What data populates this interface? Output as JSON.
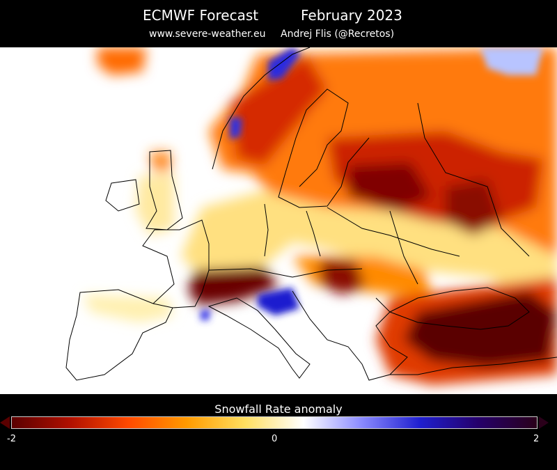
{
  "header": {
    "title": "ECMWF Forecast",
    "period": "February 2023",
    "website": "www.severe-weather.eu",
    "author": "Andrej Flis (@Recretos)"
  },
  "legend": {
    "title": "Snowfall Rate anomaly",
    "tick_min": "-2",
    "tick_mid": "0",
    "tick_max": "2",
    "colors": [
      "#5a0000",
      "#b01000",
      "#ff4a00",
      "#ff9a00",
      "#ffdf60",
      "#ffffff",
      "#8a8aff",
      "#1f1fcf",
      "#25006a",
      "#2a001a"
    ]
  },
  "map": {
    "region": "Europe",
    "variable": "snowfall rate anomaly"
  }
}
